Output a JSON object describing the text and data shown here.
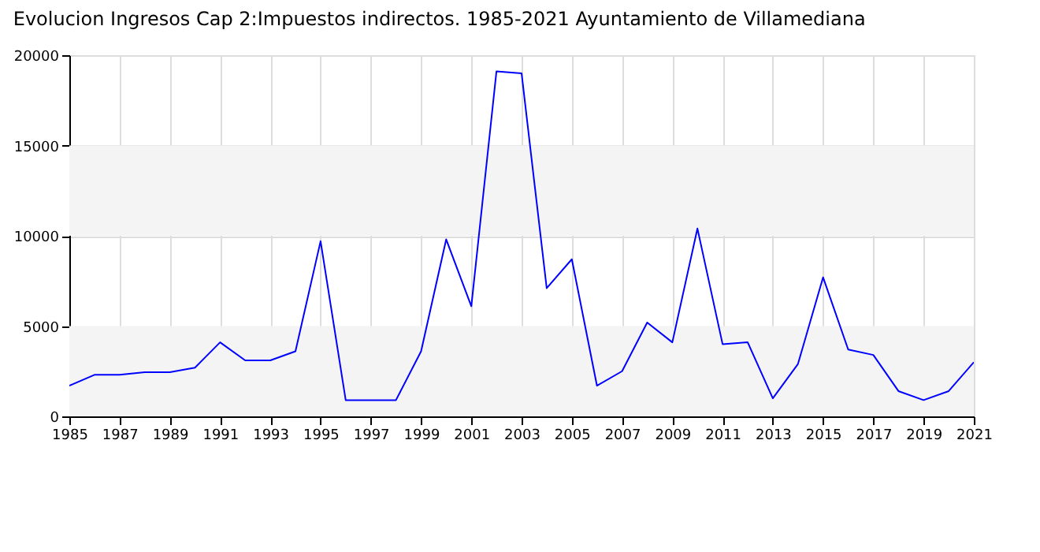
{
  "chart_data": {
    "type": "line",
    "title": "Evolucion Ingresos Cap 2:Impuestos indirectos. 1985-2021 Ayuntamiento de Villamediana",
    "x": [
      1985,
      1986,
      1987,
      1988,
      1989,
      1990,
      1991,
      1992,
      1993,
      1994,
      1995,
      1996,
      1997,
      1998,
      1999,
      2000,
      2001,
      2002,
      2003,
      2004,
      2005,
      2006,
      2007,
      2008,
      2009,
      2010,
      2011,
      2012,
      2013,
      2014,
      2015,
      2016,
      2017,
      2018,
      2019,
      2020,
      2021
    ],
    "series": [
      {
        "color": "#0000ff",
        "values": [
          1700,
          2300,
          2300,
          2450,
          2450,
          2700,
          4100,
          3100,
          3100,
          3600,
          9700,
          900,
          900,
          900,
          3600,
          9800,
          6100,
          19100,
          19000,
          7100,
          8700,
          1700,
          2500,
          5200,
          4100,
          10400,
          4000,
          4100,
          1000,
          2900,
          7700,
          3700,
          3400,
          1400,
          900,
          1400,
          3000
        ]
      }
    ],
    "xlim": [
      1985,
      2021
    ],
    "xticks": [
      1985,
      1987,
      1989,
      1991,
      1993,
      1995,
      1997,
      1999,
      2001,
      2003,
      2005,
      2007,
      2009,
      2011,
      2013,
      2015,
      2017,
      2019,
      2021
    ],
    "ylim": [
      0,
      20000
    ],
    "yticks": [
      0,
      5000,
      10000,
      15000,
      20000
    ],
    "grid": true,
    "bands": [
      {
        "axis": "y",
        "from": 0,
        "to": 5000,
        "color": "#f4f4f4"
      },
      {
        "axis": "y",
        "from": 10000,
        "to": 15000,
        "color": "#f4f4f4"
      }
    ]
  }
}
